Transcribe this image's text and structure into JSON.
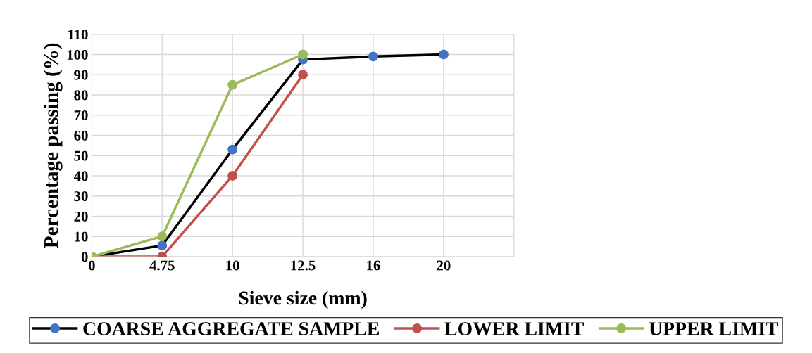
{
  "chart_data": {
    "type": "line",
    "xlabel": "Sieve size (mm)",
    "ylabel": "Percentage passing (%)",
    "categories": [
      "0",
      "4.75",
      "10",
      "12.5",
      "16",
      "20",
      null
    ],
    "series": [
      {
        "name": "COARSE AGGREGATE SAMPLE",
        "color": "#000000",
        "colors": [
          "#4472c4",
          "#4472c4",
          "#4472c4",
          "#4472c4",
          "#4472c4",
          "#4472c4",
          null
        ],
        "values": [
          0,
          5.5,
          53,
          97.5,
          99,
          100,
          null
        ]
      },
      {
        "name": "LOWER LIMIT",
        "color": "#c0504d",
        "values": [
          0,
          0,
          40,
          90,
          null,
          null,
          null
        ]
      },
      {
        "name": "UPPER LIMIT",
        "color": "#9bbb59",
        "values": [
          0,
          10,
          85,
          100,
          null,
          null,
          null
        ]
      }
    ],
    "ylim": [
      0,
      110
    ],
    "yticks": [
      0,
      10,
      20,
      30,
      40,
      50,
      60,
      70,
      80,
      90,
      100,
      110
    ],
    "grid": true,
    "legend": "bottom",
    "marker": "circle",
    "line_style": "solid"
  }
}
